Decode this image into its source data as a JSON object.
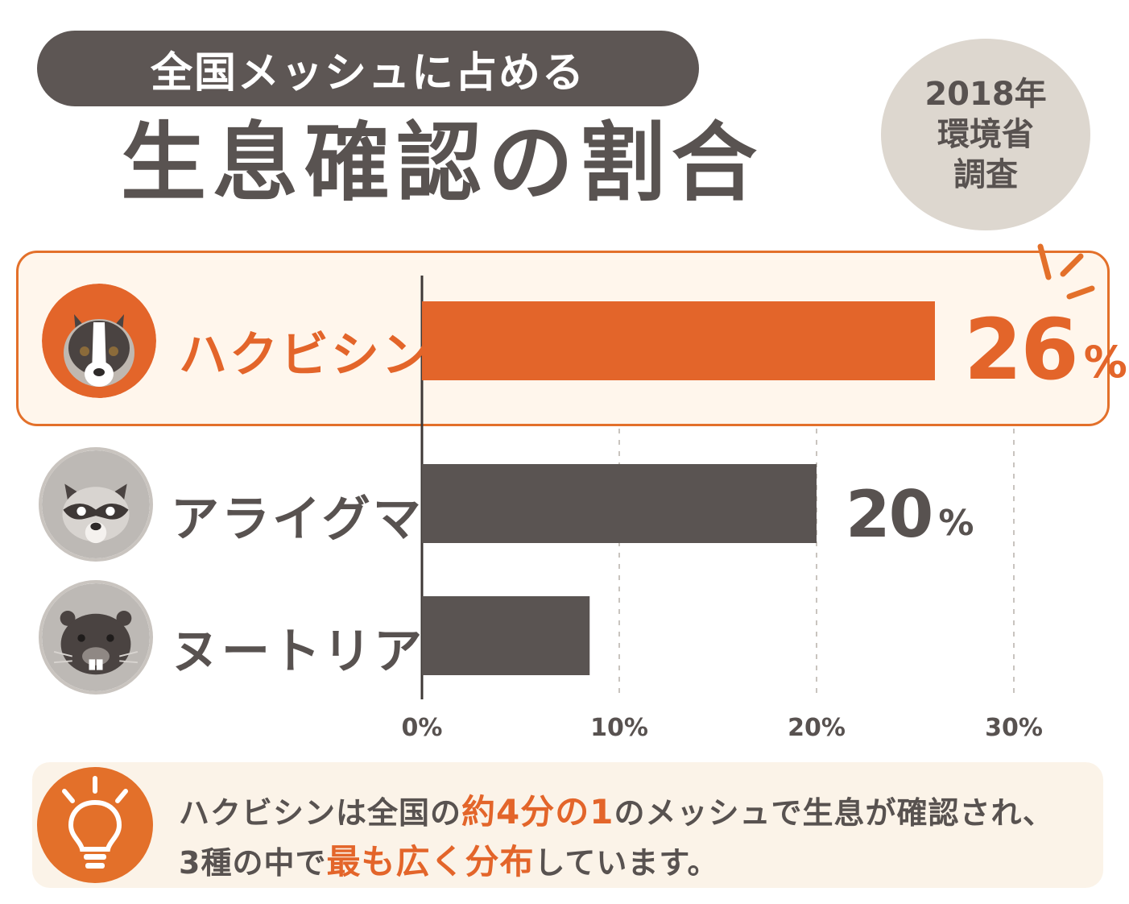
{
  "header": {
    "subtitle": "全国メッシュに占める",
    "title": "生息確認の割合"
  },
  "badge": {
    "line1": "2018年",
    "line2": "環境省",
    "line3": "調査"
  },
  "colors": {
    "highlight": "#e3652a",
    "bar_default": "#5a5452",
    "text": "#585250"
  },
  "chart_data": {
    "type": "bar",
    "orientation": "horizontal",
    "categories": [
      "ハクビシン",
      "アライグマ",
      "ヌートリア"
    ],
    "values": [
      26,
      20,
      8.5
    ],
    "value_labels": [
      "26",
      "20",
      ""
    ],
    "value_unit": "%",
    "xlim": [
      0,
      30
    ],
    "xticks": [
      "0%",
      "10%",
      "20%",
      "30%"
    ],
    "xtick_values": [
      0,
      10,
      20,
      30
    ],
    "grid": "vertical dashed",
    "highlighted_category": "ハクビシン",
    "icons": [
      "masked-palm-civet-icon",
      "raccoon-icon",
      "nutria-icon"
    ]
  },
  "note": {
    "icon": "lightbulb-icon",
    "line1": [
      {
        "text": "ハクビシンは全国の",
        "em": false
      },
      {
        "text": "約4分の1",
        "em": true
      },
      {
        "text": "のメッシュで生息が確認され、",
        "em": false
      }
    ],
    "line2": [
      {
        "text": "3種の中で",
        "em": false
      },
      {
        "text": "最も広く分布",
        "em": true
      },
      {
        "text": "しています。",
        "em": false
      }
    ]
  }
}
